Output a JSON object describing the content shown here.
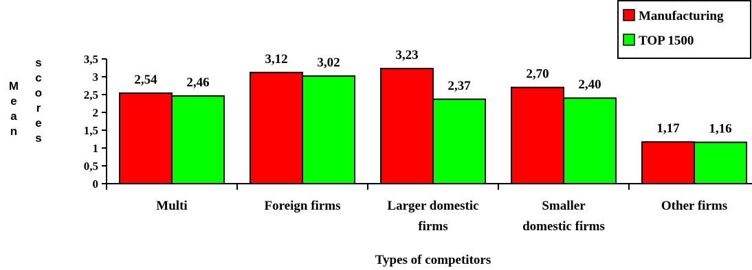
{
  "chart_data": {
    "type": "bar",
    "categories": [
      [
        "Multi"
      ],
      [
        "Foreign firms"
      ],
      [
        "Larger domestic",
        "firms"
      ],
      [
        "Smaller",
        "domestic firms"
      ],
      [
        "Other firms"
      ]
    ],
    "series": [
      {
        "name": "Manufacturing",
        "color": "#ff0000",
        "values": [
          2.54,
          3.12,
          3.23,
          2.7,
          1.17
        ],
        "labels": [
          "2,54",
          "3,12",
          "3,23",
          "2,70",
          "1,17"
        ]
      },
      {
        "name": "TOP 1500",
        "color": "#00ff00",
        "values": [
          2.46,
          3.02,
          2.37,
          2.4,
          1.16
        ],
        "labels": [
          "2,46",
          "3,02",
          "2,37",
          "2,40",
          "1,16"
        ]
      }
    ],
    "ylim": [
      0,
      3.5
    ],
    "yticks": [
      0,
      0.5,
      1,
      1.5,
      2,
      2.5,
      3,
      3.5
    ],
    "ytick_labels": [
      "0",
      "0,5",
      "1",
      "1,5",
      "2",
      "2,5",
      "3",
      "3,5"
    ],
    "xlabel": "Types of competitors",
    "ylabel_columns": [
      "Mean",
      "scores"
    ],
    "legend_position": "top-right",
    "grid": false
  }
}
